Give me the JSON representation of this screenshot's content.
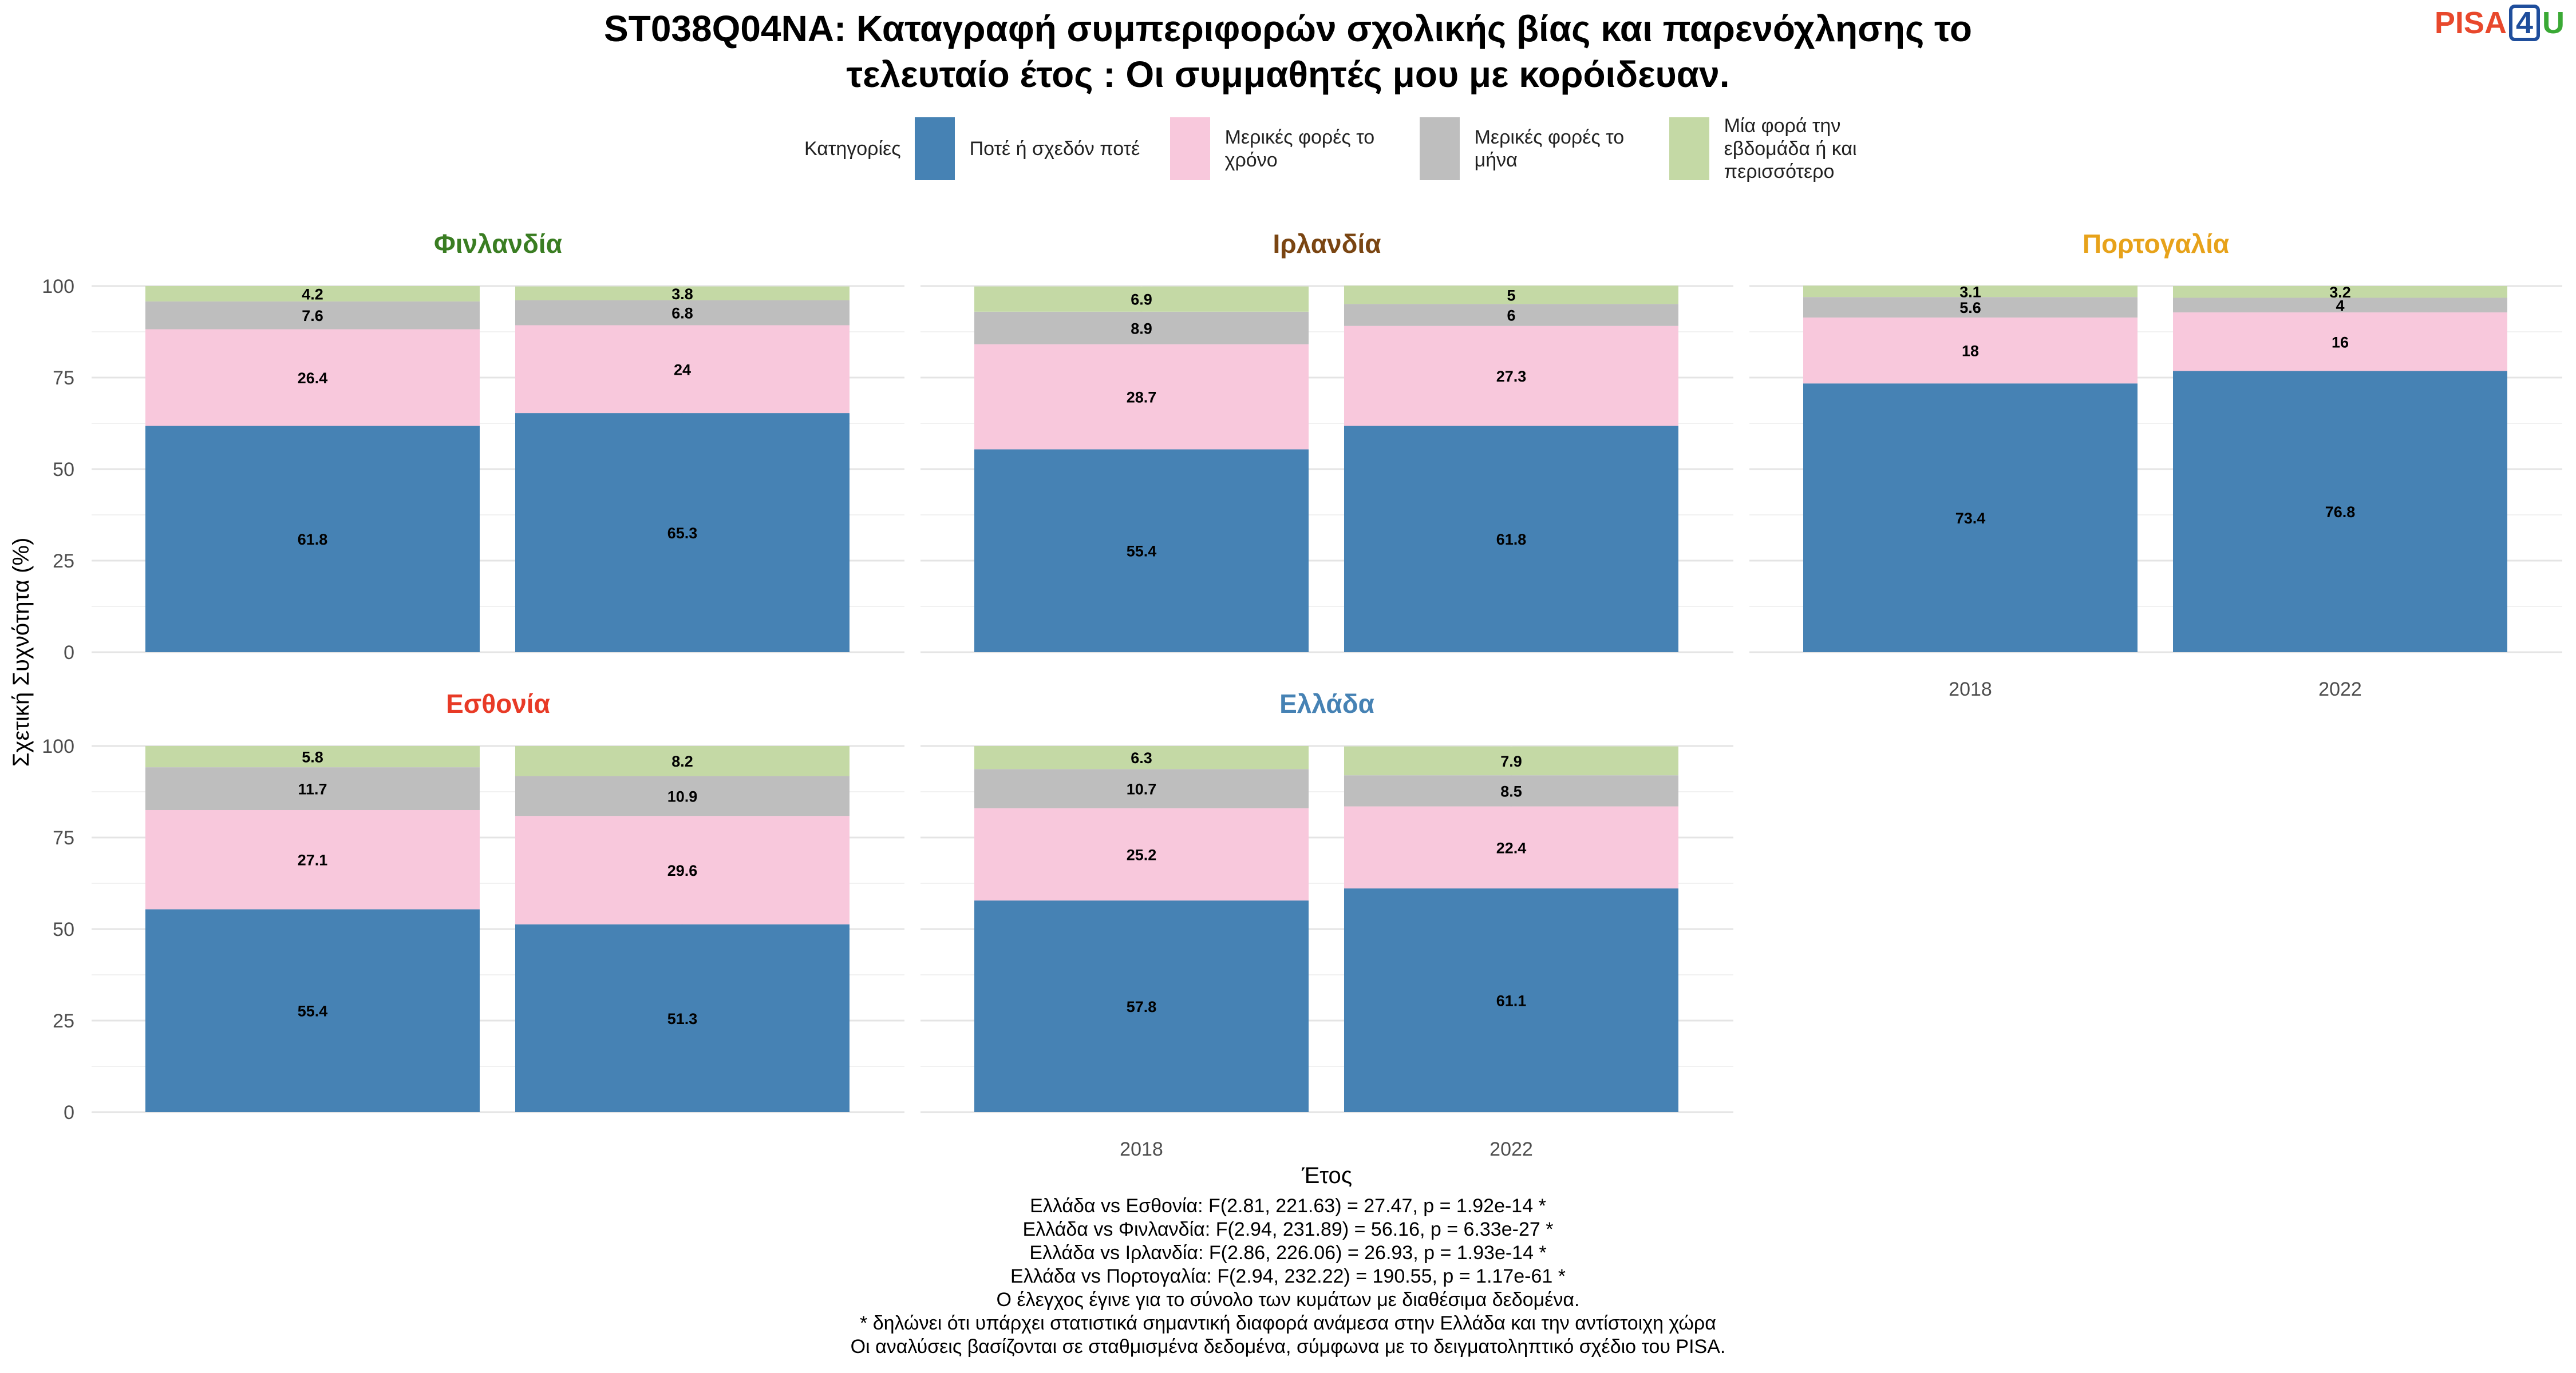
{
  "title_lines": [
    "ST038Q04NA: Καταγραφή συμπεριφορών σχολικής βίας και παρενόχλησης το",
    "τελευταίο έτος : Οι συμμαθητές μου με κορόιδευαν."
  ],
  "logo": {
    "pisa": "PISA",
    "four": "4",
    "u": "U"
  },
  "legend": {
    "title": "Κατηγορίες",
    "items": [
      {
        "label": "Ποτέ ή σχεδόν ποτέ",
        "color": "#4682b4"
      },
      {
        "label": "Μερικές φορές το χρόνο",
        "color": "#f8c8dc"
      },
      {
        "label": "Μερικές φορές το μήνα",
        "color": "#bebebe"
      },
      {
        "label": "Μία φορά την εβδομάδα ή και περισσότερο",
        "color": "#c4d9a5"
      }
    ]
  },
  "chart_data": {
    "type": "bar",
    "stacked": true,
    "xlabel": "Έτος",
    "ylabel": "Σχετική Συχνότητα (%)",
    "ylim": [
      0,
      100
    ],
    "yticks": [
      0,
      25,
      50,
      75,
      100
    ],
    "categories": [
      "2018",
      "2022"
    ],
    "series_names": [
      "Ποτέ ή σχεδόν ποτέ",
      "Μερικές φορές το χρόνο",
      "Μερικές φορές το μήνα",
      "Μία φορά την εβδομάδα ή και περισσότερο"
    ],
    "series_colors": [
      "#4682b4",
      "#f8c8dc",
      "#bebebe",
      "#c4d9a5"
    ],
    "grid": true,
    "legend_position": "top",
    "panels": [
      {
        "name": "Φινλανδία",
        "color": "#3a7d22",
        "values": [
          [
            61.8,
            26.4,
            7.6,
            4.2
          ],
          [
            65.3,
            24,
            6.8,
            3.8
          ]
        ]
      },
      {
        "name": "Ιρλανδία",
        "color": "#7a4512",
        "values": [
          [
            55.4,
            28.7,
            8.9,
            6.9
          ],
          [
            61.8,
            27.3,
            6,
            5
          ]
        ]
      },
      {
        "name": "Πορτογαλία",
        "color": "#e7a21a",
        "values": [
          [
            73.4,
            18,
            5.6,
            3.1
          ],
          [
            76.8,
            16,
            4,
            3.2
          ]
        ]
      },
      {
        "name": "Εσθονία",
        "color": "#e83a26",
        "values": [
          [
            55.4,
            27.1,
            11.7,
            5.8
          ],
          [
            51.3,
            29.6,
            10.9,
            8.2
          ]
        ]
      },
      {
        "name": "Ελλάδα",
        "color": "#4682b4",
        "values": [
          [
            57.8,
            25.2,
            10.7,
            6.3
          ],
          [
            61.1,
            22.4,
            8.5,
            7.9
          ]
        ]
      }
    ]
  },
  "notes": [
    "Ελλάδα vs Εσθονία: F(2.81, 221.63) = 27.47, p = 1.92e-14 *",
    "Ελλάδα vs Φινλανδία: F(2.94, 231.89) = 56.16, p = 6.33e-27 *",
    "Ελλάδα vs Ιρλανδία: F(2.86, 226.06) = 26.93, p = 1.93e-14 *",
    "Ελλάδα vs Πορτογαλία: F(2.94, 232.22) = 190.55, p = 1.17e-61 *",
    "Ο έλεγχος έγινε για το σύνολο των κυμάτων με διαθέσιμα δεδομένα.",
    "* δηλώνει ότι υπάρχει στατιστικά σημαντική διαφορά ανάμεσα στην Ελλάδα και την αντίστοιχη χώρα",
    "Οι αναλύσεις βασίζονται σε σταθμισμένα δεδομένα, σύμφωνα με το δειγματοληπτικό σχέδιο του PISA."
  ]
}
